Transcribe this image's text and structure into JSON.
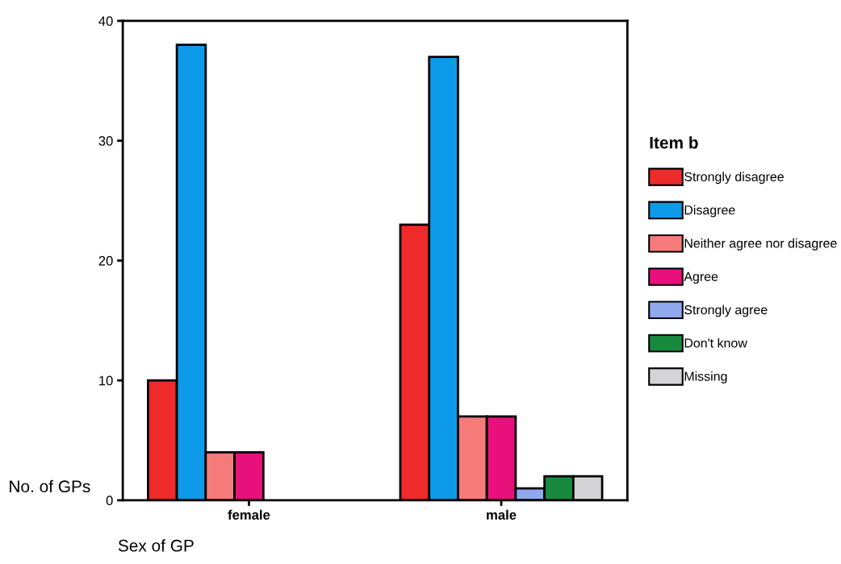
{
  "chart_data": {
    "type": "bar",
    "xlabel": "Sex of GP",
    "ylabel": "No. of GPs",
    "legend_title": "Item b",
    "categories": [
      "female",
      "male"
    ],
    "series": [
      {
        "name": "Strongly disagree",
        "color": "#ee2a2a",
        "values": [
          10,
          23
        ]
      },
      {
        "name": "Disagree",
        "color": "#0d9ae8",
        "values": [
          38,
          37
        ]
      },
      {
        "name": "Neither agree nor disagree",
        "color": "#f57b7b",
        "values": [
          4,
          7
        ]
      },
      {
        "name": "Agree",
        "color": "#e8107a",
        "values": [
          4,
          7
        ]
      },
      {
        "name": "Strongly agree",
        "color": "#8fa8ee",
        "values": [
          null,
          1
        ]
      },
      {
        "name": "Don't know",
        "color": "#178a3e",
        "values": [
          null,
          2
        ]
      },
      {
        "name": "Missing",
        "color": "#d4d4d6",
        "values": [
          null,
          2
        ]
      }
    ],
    "ylim": [
      0,
      40
    ],
    "yticks": [
      0,
      10,
      20,
      30,
      40
    ],
    "grid": false,
    "legend": "right"
  }
}
